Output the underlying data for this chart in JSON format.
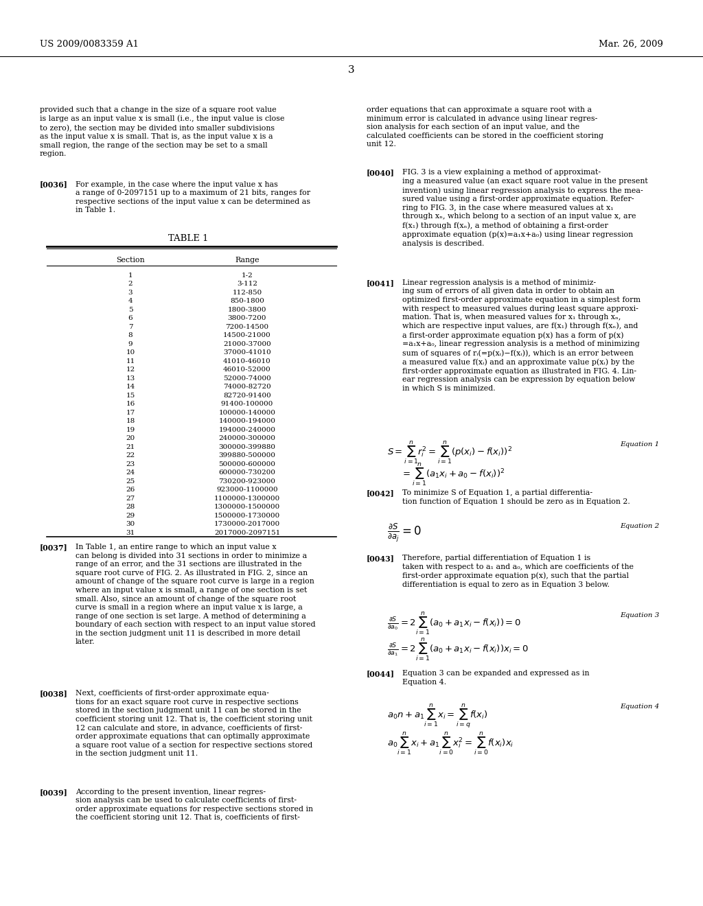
{
  "header_left": "US 2009/0083359 A1",
  "header_right": "Mar. 26, 2009",
  "page_number": "3",
  "bg_color": "#ffffff",
  "text_color": "#000000",
  "table_sections": [
    1,
    2,
    3,
    4,
    5,
    6,
    7,
    8,
    9,
    10,
    11,
    12,
    13,
    14,
    15,
    16,
    17,
    18,
    19,
    20,
    21,
    22,
    23,
    24,
    25,
    26,
    27,
    28,
    29,
    30,
    31
  ],
  "table_ranges": [
    "1-2",
    "3-112",
    "112-850",
    "850-1800",
    "1800-3800",
    "3800-7200",
    "7200-14500",
    "14500-21000",
    "21000-37000",
    "37000-41010",
    "41010-46010",
    "46010-52000",
    "52000-74000",
    "74000-82720",
    "82720-91400",
    "91400-100000",
    "100000-140000",
    "140000-194000",
    "194000-240000",
    "240000-300000",
    "300000-399880",
    "399880-500000",
    "500000-600000",
    "600000-730200",
    "730200-923000",
    "923000-1100000",
    "1100000-1300000",
    "1300000-1500000",
    "1500000-1730000",
    "1730000-2017000",
    "2017000-2097151"
  ]
}
